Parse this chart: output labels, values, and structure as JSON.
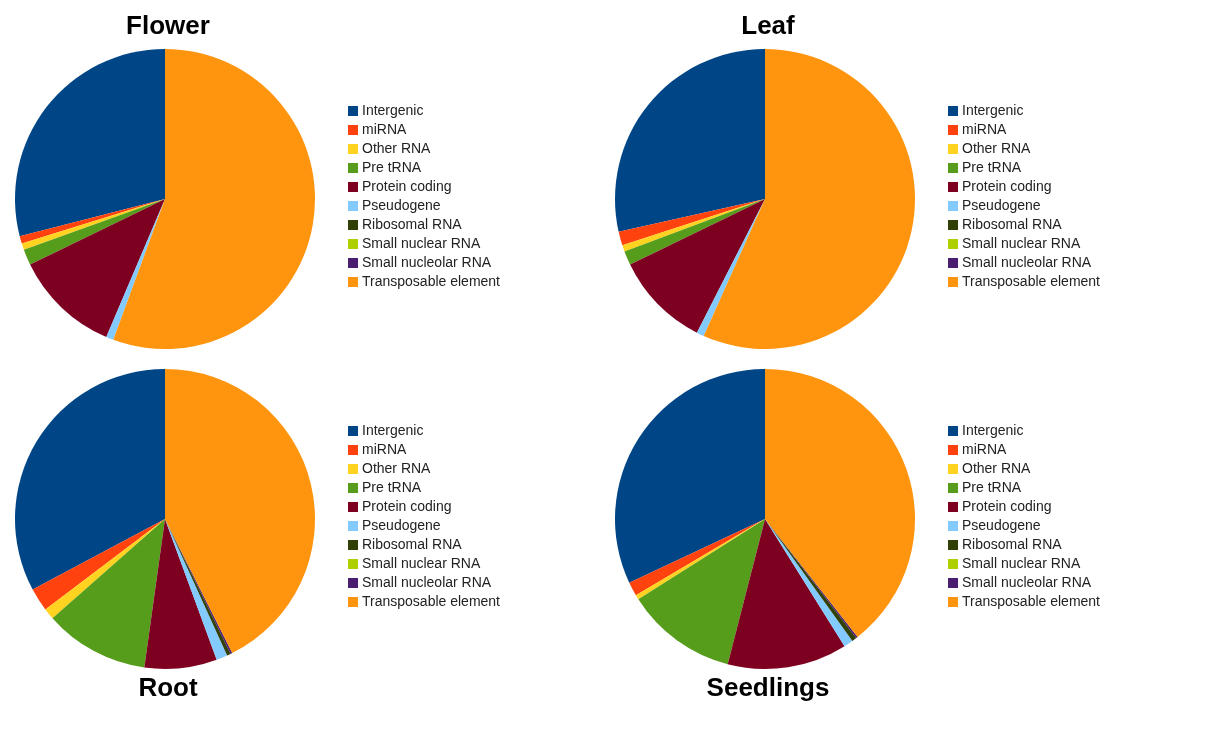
{
  "chart_data": [
    {
      "type": "pie",
      "title": "Flower",
      "legend": "right",
      "categories": [
        "Intergenic",
        "miRNA",
        "Other RNA",
        "Pre tRNA",
        "Protein coding",
        "Pseudogene",
        "Ribosomal RNA",
        "Small nuclear RNA",
        "Small nucleolar RNA",
        "Transposable element"
      ],
      "values": [
        29,
        0.8,
        0.7,
        1.7,
        11.4,
        0.8,
        0,
        0,
        0,
        55.6
      ],
      "colors": [
        "#004586",
        "#ff420e",
        "#ffd320",
        "#579d1c",
        "#7e0021",
        "#83caff",
        "#314004",
        "#aecf00",
        "#4b1f6f",
        "#ff950e"
      ]
    },
    {
      "type": "pie",
      "title": "Leaf",
      "legend": "right",
      "categories": [
        "Intergenic",
        "miRNA",
        "Other RNA",
        "Pre tRNA",
        "Protein coding",
        "Pseudogene",
        "Ribosomal RNA",
        "Small nuclear RNA",
        "Small nucleolar RNA",
        "Transposable element"
      ],
      "values": [
        28.5,
        1.5,
        0.7,
        1.5,
        10.3,
        0.8,
        0,
        0,
        0,
        56.7
      ],
      "colors": [
        "#004586",
        "#ff420e",
        "#ffd320",
        "#579d1c",
        "#7e0021",
        "#83caff",
        "#314004",
        "#aecf00",
        "#4b1f6f",
        "#ff950e"
      ]
    },
    {
      "type": "pie",
      "title": "Root",
      "legend": "right",
      "categories": [
        "Intergenic",
        "miRNA",
        "Other RNA",
        "Pre tRNA",
        "Protein coding",
        "Pseudogene",
        "Ribosomal RNA",
        "Small nuclear RNA",
        "Small nucleolar RNA",
        "Transposable element"
      ],
      "values": [
        32.8,
        2.5,
        1.2,
        11.3,
        7.8,
        1.2,
        0.4,
        0,
        0.2,
        42.6
      ],
      "colors": [
        "#004586",
        "#ff420e",
        "#ffd320",
        "#579d1c",
        "#7e0021",
        "#83caff",
        "#314004",
        "#aecf00",
        "#4b1f6f",
        "#ff950e"
      ]
    },
    {
      "type": "pie",
      "title": "Seedlings",
      "legend": "right",
      "categories": [
        "Intergenic",
        "miRNA",
        "Other RNA",
        "Pre tRNA",
        "Protein coding",
        "Pseudogene",
        "Ribosomal RNA",
        "Small nuclear RNA",
        "Small nucleolar RNA",
        "Transposable element"
      ],
      "values": [
        32,
        1.5,
        0.5,
        12,
        12.9,
        1,
        0.5,
        0,
        0.2,
        39.4
      ],
      "colors": [
        "#004586",
        "#ff420e",
        "#ffd320",
        "#579d1c",
        "#7e0021",
        "#83caff",
        "#314004",
        "#aecf00",
        "#4b1f6f",
        "#ff950e"
      ]
    }
  ]
}
